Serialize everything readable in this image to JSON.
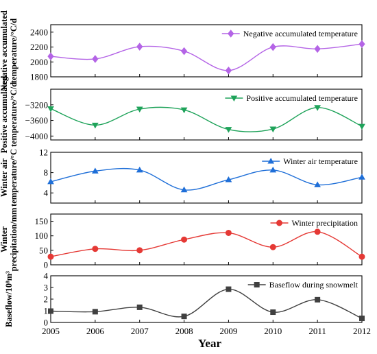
{
  "chart_data": {
    "type": "line",
    "xlabel": "Year",
    "x": [
      2005,
      2006,
      2007,
      2008,
      2009,
      2010,
      2011,
      2012
    ],
    "xlim": [
      2005,
      2012
    ],
    "xticks": [
      "2005",
      "2006",
      "2007",
      "2008",
      "2009",
      "2010",
      "2011",
      "2012"
    ],
    "legend_position": "top-right",
    "panels": [
      {
        "name": "Negative accumulated temperature",
        "ylabel_lines": [
          "Negative accumulated",
          "temperature/°C/d"
        ],
        "values": [
          2075,
          2040,
          2205,
          2145,
          1885,
          2200,
          2175,
          2240
        ],
        "ylim": [
          1800,
          2500
        ],
        "yticks": [
          1800,
          2000,
          2200,
          2400
        ],
        "ytick_labels": [
          "1800",
          "2000",
          "2200",
          "2400"
        ],
        "color": "#b464e6",
        "marker": "diamond"
      },
      {
        "name": "Positive accumulated temperature",
        "ylabel_lines": [
          "Positive accumulated",
          "temperature/°C/d"
        ],
        "values": [
          -3300,
          -3720,
          -3310,
          -3330,
          -3830,
          -3820,
          -3270,
          -3750
        ],
        "ylim": [
          -4100,
          -2800
        ],
        "yticks": [
          -4000,
          -3600,
          -3200
        ],
        "ytick_labels": [
          "−4000",
          "−3600",
          "−3200"
        ],
        "color": "#1fa35a",
        "marker": "triangle-down"
      },
      {
        "name": "Winter air temperature",
        "ylabel_lines": [
          "Winter air",
          "temperature/°C"
        ],
        "values": [
          6.2,
          8.3,
          8.5,
          4.6,
          6.6,
          8.5,
          5.6,
          7.1
        ],
        "ylim": [
          2,
          12
        ],
        "yticks": [
          4,
          8,
          12
        ],
        "ytick_labels": [
          "4",
          "8",
          "12"
        ],
        "color": "#1f6fd8",
        "marker": "triangle-up"
      },
      {
        "name": "Winter precipitation",
        "ylabel_lines": [
          "Winter",
          "precipitation/mm"
        ],
        "values": [
          28,
          55,
          50,
          87,
          110,
          61,
          114,
          28
        ],
        "ylim": [
          0,
          175
        ],
        "yticks": [
          0,
          50,
          100,
          150
        ],
        "ytick_labels": [
          "0",
          "50",
          "100",
          "150"
        ],
        "color": "#e53935",
        "marker": "circle"
      },
      {
        "name": "Baseflow during snowmelt",
        "ylabel_lines": [
          "Baseflow/10⁸m³"
        ],
        "values": [
          0.97,
          0.92,
          1.3,
          0.52,
          2.85,
          0.88,
          1.95,
          0.35
        ],
        "ylim": [
          0,
          4
        ],
        "yticks": [
          0,
          1,
          2,
          3,
          4
        ],
        "ytick_labels": [
          "0",
          "1",
          "2",
          "3",
          "4"
        ],
        "color": "#404040",
        "marker": "square"
      }
    ]
  }
}
